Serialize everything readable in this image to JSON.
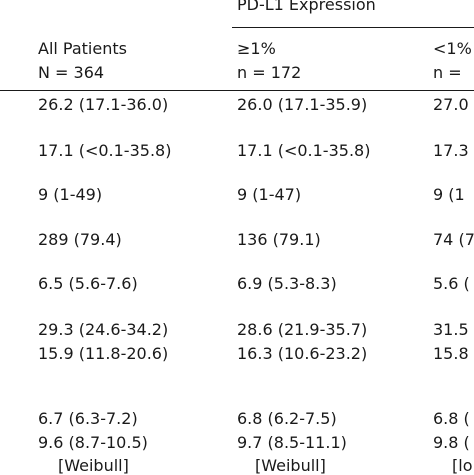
{
  "header": {
    "group_title": "PD-L1 Expression",
    "col_all": {
      "line1": "All Patients",
      "line2": "N = 364"
    },
    "col_ge1": {
      "line1": "≥1%",
      "line2": "n = 172"
    },
    "col_lt1": {
      "line1": "<1%",
      "line2": "n ="
    }
  },
  "rows": [
    {
      "all": "26.2 (17.1-36.0)",
      "ge1": "26.0 (17.1-35.9)",
      "lt1": "27.0"
    },
    {
      "all": "17.1 (<0.1-35.8)",
      "ge1": "17.1 (<0.1-35.8)",
      "lt1": "17.3"
    },
    {
      "all": "9 (1-49)",
      "ge1": "9 (1-47)",
      "lt1": "9 (1"
    },
    {
      "all": "289 (79.4)",
      "ge1": "136 (79.1)",
      "lt1": "74 (7"
    },
    {
      "all": "6.5 (5.6-7.6)",
      "ge1": "6.9 (5.3-8.3)",
      "lt1": "5.6 ("
    },
    {
      "all": "29.3 (24.6-34.2)",
      "ge1": "28.6 (21.9-35.7)",
      "lt1": "31.5"
    },
    {
      "all": "15.9 (11.8-20.6)",
      "ge1": "16.3 (10.6-23.2)",
      "lt1": "15.8"
    },
    {
      "all": "6.7 (6.3-7.2)",
      "ge1": "6.8 (6.2-7.5)",
      "lt1": "6.8 ("
    },
    {
      "all": "9.6 (8.7-10.5)",
      "ge1": "9.7 (8.5-11.1)",
      "lt1": "9.8 ("
    },
    {
      "all": "[Weibull]",
      "ge1": "[Weibull]",
      "lt1": "[lo"
    }
  ]
}
